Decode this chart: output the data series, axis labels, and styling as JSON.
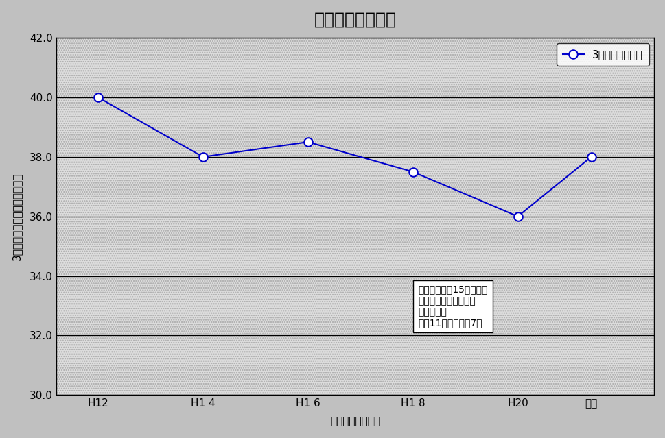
{
  "title": "まちなか滯留時間",
  "xlabel": "調査年度（年度）",
  "ylabel": "3時間以上滞在する割合（％）",
  "x_labels": [
    "H12",
    "H1 4",
    "H1 6",
    "H1 8",
    "H20",
    "今年"
  ],
  "x_values": [
    0,
    1,
    2,
    3,
    4,
    4.7
  ],
  "y_values": [
    40.0,
    38.0,
    38.5,
    37.5,
    36.0,
    38.0
  ],
  "ylim": [
    30.0,
    42.0
  ],
  "yticks": [
    30.0,
    32.0,
    34.0,
    36.0,
    38.0,
    40.0,
    42.0
  ],
  "line_color": "#0000CC",
  "marker_color": "#0000CC",
  "legend_label": "3時間以上の割合",
  "annotation_line1": "大分市中心郥15箇所にて",
  "annotation_line2": "アンケート調査を実施",
  "annotation_line3": "調査時間は",
  "annotation_line4": "午前11時から午後7時",
  "plot_bg_color": "#E8E8E8",
  "outer_bg_color": "#C0C0C0",
  "hatch_color": "#B0B0B0",
  "title_fontsize": 18,
  "label_fontsize": 11,
  "tick_fontsize": 11,
  "legend_fontsize": 11,
  "annot_fontsize": 10,
  "xlim": [
    -0.4,
    5.3
  ]
}
